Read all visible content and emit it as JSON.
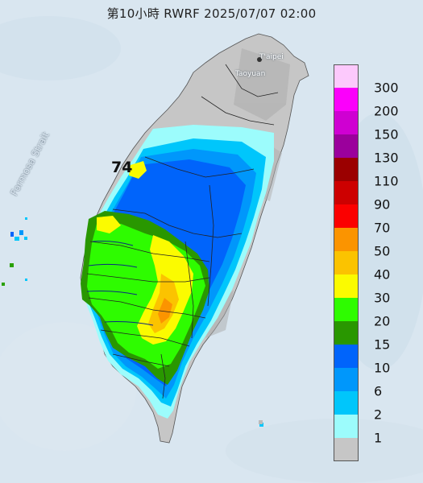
{
  "title": "第10小時  RWRF 2025/07/07 02:00",
  "map_labels": {
    "strait": "Formosa Strait",
    "taipei": "T'aipei",
    "taoyuan": "Taoyuan"
  },
  "max_marker": "74",
  "legend": {
    "items": [
      {
        "label": "300",
        "color": "#fcc9fc"
      },
      {
        "label": "200",
        "color": "#fb00fb"
      },
      {
        "label": "150",
        "color": "#cf00d2"
      },
      {
        "label": "130",
        "color": "#9b009c"
      },
      {
        "label": "110",
        "color": "#9b0000"
      },
      {
        "label": "90",
        "color": "#cd0000"
      },
      {
        "label": "70",
        "color": "#fb0000"
      },
      {
        "label": "50",
        "color": "#fb9400"
      },
      {
        "label": "40",
        "color": "#fbc300"
      },
      {
        "label": "30",
        "color": "#fbfb00"
      },
      {
        "label": "20",
        "color": "#2efc00"
      },
      {
        "label": "15",
        "color": "#299700"
      },
      {
        "label": "10",
        "color": "#0064fb"
      },
      {
        "label": "6",
        "color": "#0097fb"
      },
      {
        "label": "2",
        "color": "#00c6fb"
      },
      {
        "label": "1",
        "color": "#9cfcfc"
      },
      {
        "label": "",
        "color": "#c6c6c6"
      }
    ],
    "bottom_label": "1"
  },
  "colors": {
    "sea": "#d9e6f0",
    "land_gray": "#c6c6c6",
    "terrain_gray": "#b7b7b7"
  }
}
